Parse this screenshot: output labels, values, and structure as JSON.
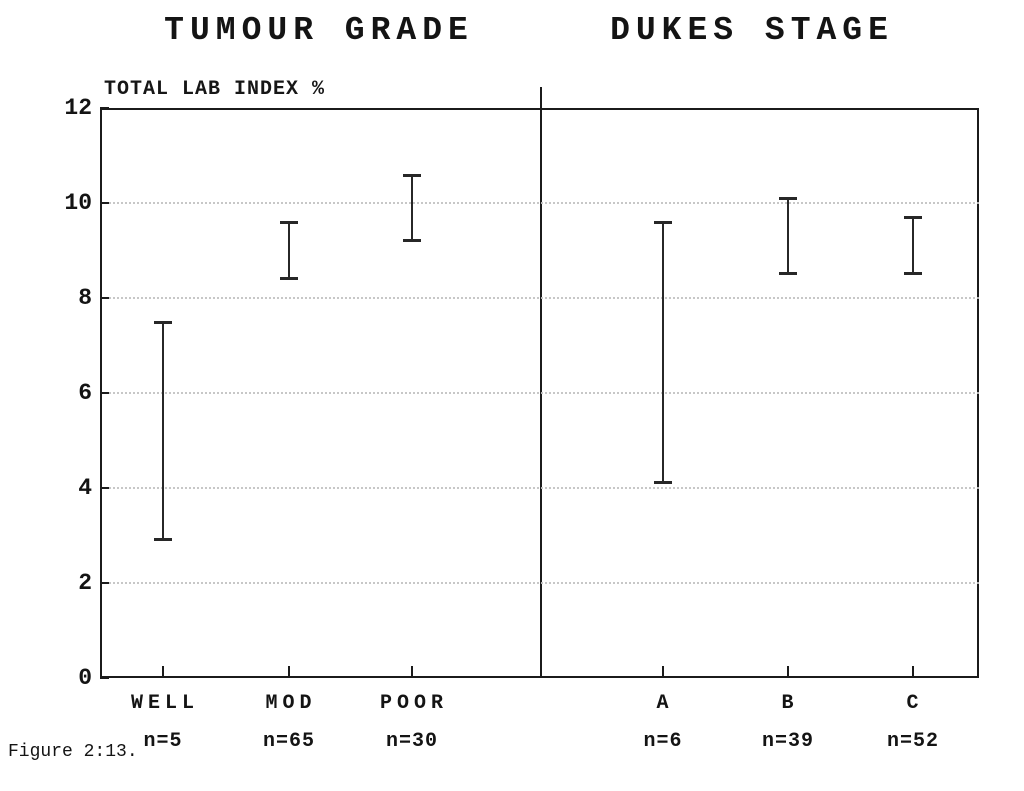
{
  "figure": {
    "caption": "Figure 2:13.",
    "ylabel": "TOTAL LAB INDEX %"
  },
  "chart_data": [
    {
      "type": "errorbar",
      "title": "TUMOUR GRADE",
      "ylabel": "TOTAL LAB INDEX %",
      "categories": [
        "WELL",
        "MOD",
        "POOR"
      ],
      "n_labels": [
        "n=5",
        "n=65",
        "n=30"
      ],
      "ranges": [
        [
          2.9,
          7.5
        ],
        [
          8.4,
          9.6
        ],
        [
          9.2,
          10.6
        ]
      ],
      "ylim": [
        0,
        12
      ],
      "yticks": [
        0,
        2,
        4,
        6,
        8,
        10,
        12
      ],
      "grid": "faint dotted horizontal gridlines at ticks 2,4,6,8,10",
      "legend": "none"
    },
    {
      "type": "errorbar",
      "title": "DUKES STAGE",
      "categories": [
        "A",
        "B",
        "C"
      ],
      "n_labels": [
        "n=6",
        "n=39",
        "n=52"
      ],
      "ranges": [
        [
          4.1,
          9.6
        ],
        [
          8.5,
          10.1
        ],
        [
          8.5,
          9.7
        ]
      ],
      "ylim": [
        0,
        12
      ],
      "yticks": [
        0,
        2,
        4,
        6,
        8,
        10,
        12
      ],
      "grid": "faint dotted horizontal gridlines at ticks 2,4,6,8,10",
      "legend": "none"
    }
  ],
  "colors": {
    "ink": "#1e1e1e",
    "grid": "#c2c2c2",
    "background": "#ffffff"
  }
}
